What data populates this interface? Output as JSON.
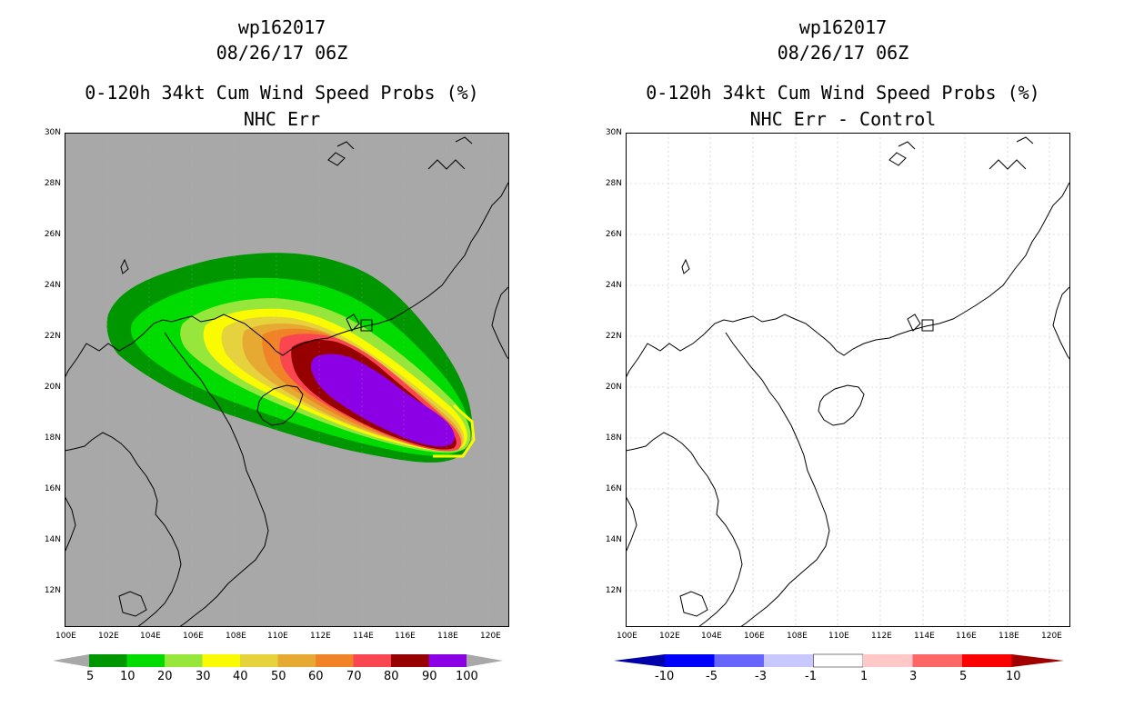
{
  "left": {
    "title_line1": "wp162017",
    "title_line2": "08/26/17 06Z",
    "title_line3": "0-120h 34kt Cum Wind Speed Probs (%)",
    "title_line4": "NHC Err"
  },
  "right": {
    "title_line1": "wp162017",
    "title_line2": "08/26/17 06Z",
    "title_line3": "0-120h 34kt Cum Wind Speed Probs (%)",
    "title_line4": "NHC Err - Control"
  },
  "axes": {
    "x_labels": [
      "100E",
      "102E",
      "104E",
      "106E",
      "108E",
      "110E",
      "112E",
      "114E",
      "116E",
      "118E",
      "120E"
    ],
    "y_labels": [
      "30N",
      "28N",
      "26N",
      "24N",
      "22N",
      "20N",
      "18N",
      "16N",
      "14N",
      "12N"
    ]
  },
  "left_colorbar": {
    "labels": [
      "5",
      "10",
      "20",
      "30",
      "40",
      "50",
      "60",
      "70",
      "80",
      "90",
      "100"
    ],
    "colors": [
      "#009600",
      "#00dc00",
      "#96e63c",
      "#fafa00",
      "#e6d23c",
      "#e6aa32",
      "#f08228",
      "#fa4650",
      "#960000",
      "#8c00e6"
    ]
  },
  "right_colorbar": {
    "labels": [
      "-10",
      "-5",
      "-3",
      "-1",
      "1",
      "3",
      "5",
      "10"
    ],
    "colors": [
      "#0000aa",
      "#0000ff",
      "#6666ff",
      "#c8c8ff",
      "#ffffff",
      "#ffc8c8",
      "#ff6666",
      "#ff0000",
      "#a00000"
    ]
  },
  "colors": {
    "land_bg": "#a8a8a8",
    "coast": "#000000",
    "grid": "#bfbfbf"
  }
}
